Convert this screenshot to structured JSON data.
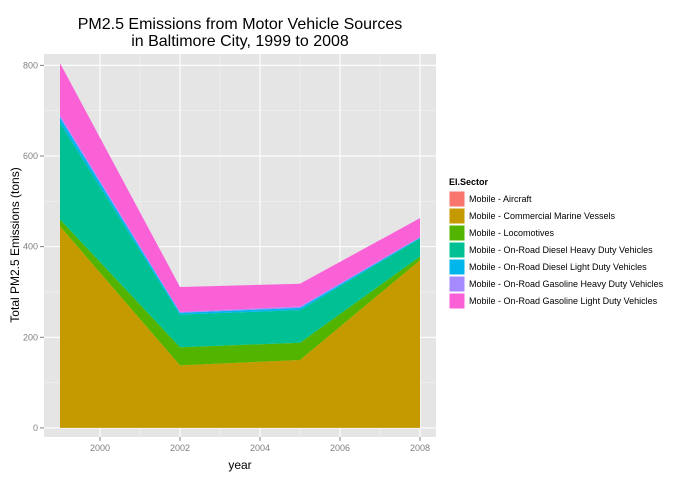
{
  "chart_data": {
    "type": "area",
    "stacked": true,
    "title": [
      "PM2.5 Emissions from Motor Vehicle Sources",
      "in Baltimore City, 1999 to 2008"
    ],
    "xlabel": "year",
    "ylabel": "Total PM2.5 Emissions (tons)",
    "x": [
      1999,
      2002,
      2005,
      2008
    ],
    "xlim": [
      1998.6,
      2008.4
    ],
    "ylim": [
      -20,
      825
    ],
    "x_ticks": [
      2000,
      2002,
      2004,
      2006,
      2008
    ],
    "y_ticks": [
      0,
      200,
      400,
      600,
      800
    ],
    "grid": true,
    "legend_position": "right",
    "legend_title": "EI.Sector",
    "series": [
      {
        "name": "Mobile - Aircraft",
        "color": "#F8766D",
        "values": [
          0,
          0,
          0,
          0
        ]
      },
      {
        "name": "Mobile - Commercial Marine Vessels",
        "color": "#C49A00",
        "values": [
          445,
          138,
          150,
          370
        ]
      },
      {
        "name": "Mobile - Locomotives",
        "color": "#53B400",
        "values": [
          15,
          40,
          38,
          8
        ]
      },
      {
        "name": "Mobile - On-Road Diesel Heavy Duty Vehicles",
        "color": "#00C094",
        "values": [
          213,
          72,
          72,
          40
        ]
      },
      {
        "name": "Mobile - On-Road Diesel Light Duty Vehicles",
        "color": "#00B6EB",
        "values": [
          12,
          4,
          5,
          2
        ]
      },
      {
        "name": "Mobile - On-Road Gasoline Heavy Duty Vehicles",
        "color": "#A58AFF",
        "values": [
          5,
          2,
          3,
          1
        ]
      },
      {
        "name": "Mobile - On-Road Gasoline Light Duty Vehicles",
        "color": "#FB61D7",
        "values": [
          115,
          55,
          50,
          42
        ]
      }
    ]
  }
}
